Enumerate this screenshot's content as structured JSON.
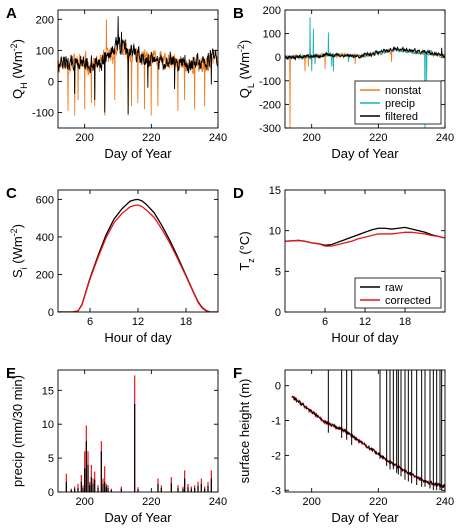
{
  "colors": {
    "orange": "#f07c22",
    "teal": "#1ab3b3",
    "black": "#000000",
    "red": "#e8141b",
    "axis": "#000000"
  },
  "chart_data": [
    {
      "panel": "A",
      "type": "line",
      "panel_label": "A",
      "xlabel": "Day of Year",
      "ylabel_main": "Q",
      "ylabel_sub": "H",
      "ylabel_unit_pre": " (Wm",
      "ylabel_unit_sup": "-2",
      "ylabel_unit_post": ")",
      "xlim": [
        192,
        240
      ],
      "ylim": [
        -150,
        230
      ],
      "xticks": [
        200,
        220,
        240
      ],
      "yticks": [
        -100,
        0,
        100,
        200
      ],
      "legend": "none",
      "series": [
        {
          "color": "orange",
          "gen": {
            "seed": 11,
            "n": 480,
            "base": 62,
            "amp": 28,
            "trend": [
              [
                192,
                60
              ],
              [
                205,
                55
              ],
              [
                210,
                110
              ],
              [
                215,
                85
              ],
              [
                225,
                60
              ],
              [
                235,
                55
              ],
              [
                240,
                75
              ]
            ],
            "spikes": [
              [
                195,
                -95
              ],
              [
                197,
                -110
              ],
              [
                198,
                -60
              ],
              [
                200,
                -90
              ],
              [
                202,
                -70
              ],
              [
                203,
                -80
              ],
              [
                206,
                -110
              ],
              [
                206.5,
                200
              ],
              [
                209,
                -60
              ],
              [
                213,
                -110
              ],
              [
                214,
                -80
              ],
              [
                216,
                -70
              ],
              [
                218,
                -90
              ],
              [
                220,
                -110
              ],
              [
                222,
                -80
              ],
              [
                228,
                -95
              ],
              [
                230,
                -60
              ],
              [
                233,
                -90
              ],
              [
                236,
                -80
              ]
            ]
          }
        },
        {
          "color": "black",
          "gen": {
            "seed": 12,
            "n": 480,
            "base": 62,
            "amp": 24,
            "trend": [
              [
                192,
                60
              ],
              [
                205,
                55
              ],
              [
                210,
                120
              ],
              [
                215,
                85
              ],
              [
                225,
                60
              ],
              [
                235,
                55
              ],
              [
                240,
                80
              ]
            ],
            "spikes": [
              [
                197,
                -40
              ],
              [
                203,
                -60
              ],
              [
                206,
                -100
              ],
              [
                210,
                210
              ],
              [
                211,
                160
              ],
              [
                213,
                -105
              ],
              [
                219,
                -20
              ],
              [
                227,
                -25
              ],
              [
                238,
                -10
              ]
            ]
          }
        }
      ]
    },
    {
      "panel": "B",
      "type": "line",
      "panel_label": "B",
      "xlabel": "Day of Year",
      "ylabel_main": "Q",
      "ylabel_sub": "L",
      "ylabel_unit_pre": " (Wm",
      "ylabel_unit_sup": "-2",
      "ylabel_unit_post": ")",
      "xlim": [
        192,
        240
      ],
      "ylim": [
        -300,
        200
      ],
      "xticks": [
        200,
        220,
        240
      ],
      "yticks": [
        -300,
        -200,
        -100,
        0,
        100,
        200
      ],
      "legend": "lower-right",
      "series": [
        {
          "name": "nonstat",
          "color": "orange",
          "gen": {
            "seed": 21,
            "n": 480,
            "base": 5,
            "amp": 8,
            "trend": [
              [
                192,
                0
              ],
              [
                200,
                5
              ],
              [
                205,
                10
              ],
              [
                215,
                5
              ],
              [
                225,
                30
              ],
              [
                232,
                20
              ],
              [
                240,
                5
              ]
            ],
            "spikes": [
              [
                193.5,
                -300
              ],
              [
                198,
                -60
              ],
              [
                199,
                -40
              ],
              [
                204,
                -50
              ],
              [
                213,
                -30
              ],
              [
                224,
                -20
              ]
            ]
          }
        },
        {
          "name": "precip",
          "color": "teal",
          "gen": {
            "seed": 22,
            "n": 480,
            "base": 5,
            "amp": 5,
            "trend": [
              [
                192,
                0
              ],
              [
                200,
                5
              ],
              [
                205,
                10
              ],
              [
                215,
                5
              ],
              [
                225,
                30
              ],
              [
                232,
                20
              ],
              [
                240,
                5
              ]
            ],
            "spikes": [
              [
                199.5,
                170
              ],
              [
                200,
                -60
              ],
              [
                200.5,
                120
              ],
              [
                201,
                -30
              ],
              [
                205,
                105
              ],
              [
                206,
                -40
              ],
              [
                206.5,
                -60
              ],
              [
                211,
                -20
              ],
              [
                234,
                -300
              ],
              [
                234.5,
                -100
              ],
              [
                236,
                30
              ]
            ]
          }
        },
        {
          "name": "filtered",
          "color": "black",
          "gen": {
            "seed": 23,
            "n": 480,
            "base": 5,
            "amp": 7,
            "trend": [
              [
                192,
                0
              ],
              [
                200,
                5
              ],
              [
                205,
                10
              ],
              [
                215,
                5
              ],
              [
                225,
                35
              ],
              [
                232,
                25
              ],
              [
                240,
                5
              ]
            ],
            "spikes": [
              [
                239,
                40
              ]
            ]
          }
        }
      ]
    },
    {
      "panel": "C",
      "type": "line",
      "panel_label": "C",
      "xlabel": "Hour of day",
      "ylabel_main": "S",
      "ylabel_sub": "i",
      "ylabel_unit_pre": " (Wm",
      "ylabel_unit_sup": "-2",
      "ylabel_unit_post": ")",
      "xlim": [
        2,
        22
      ],
      "ylim": [
        0,
        650
      ],
      "xticks": [
        6,
        12,
        18
      ],
      "yticks": [
        0,
        200,
        400,
        600
      ],
      "legend": "none",
      "series": [
        {
          "color": "black",
          "x": [
            2,
            3.8,
            4.5,
            5,
            6,
            7,
            8,
            9,
            10,
            11,
            11.6,
            12,
            12.5,
            13,
            14,
            15,
            16,
            17,
            18,
            19,
            19.5,
            20,
            20.5,
            21,
            22
          ],
          "y": [
            0,
            0,
            5,
            40,
            180,
            300,
            410,
            495,
            550,
            590,
            598,
            600,
            592,
            575,
            530,
            460,
            380,
            290,
            195,
            100,
            55,
            25,
            8,
            0,
            0
          ]
        },
        {
          "color": "red",
          "x": [
            2,
            3.8,
            4.5,
            5,
            6,
            7,
            8,
            9,
            10,
            11,
            11.6,
            12,
            12.5,
            13,
            14,
            15,
            16,
            17,
            18,
            19,
            19.5,
            20,
            20.5,
            21,
            22
          ],
          "y": [
            0,
            0,
            5,
            38,
            175,
            290,
            395,
            475,
            525,
            560,
            568,
            570,
            562,
            545,
            505,
            440,
            365,
            280,
            190,
            97,
            52,
            22,
            6,
            0,
            0
          ]
        }
      ]
    },
    {
      "panel": "D",
      "type": "line",
      "panel_label": "D",
      "xlabel": "Hour of day",
      "ylabel_main": "T",
      "ylabel_sub": "z",
      "ylabel_unit_pre": " (°C)",
      "ylabel_unit_sup": "",
      "ylabel_unit_post": "",
      "xlim": [
        0,
        24
      ],
      "ylim": [
        0,
        15
      ],
      "xticks": [
        6,
        12,
        18
      ],
      "yticks": [
        0,
        5,
        10,
        15
      ],
      "legend": "lower-right",
      "series": [
        {
          "name": "raw",
          "color": "black",
          "x": [
            0,
            2,
            3,
            4,
            5,
            6,
            7,
            8,
            9,
            10,
            11,
            12,
            13,
            14,
            15,
            16,
            17,
            18,
            19,
            20,
            21,
            22,
            23,
            24
          ],
          "y": [
            8.7,
            8.8,
            8.7,
            8.5,
            8.4,
            8.2,
            8.3,
            8.6,
            8.9,
            9.2,
            9.5,
            9.8,
            10.1,
            10.3,
            10.3,
            10.2,
            10.3,
            10.4,
            10.2,
            10.0,
            9.8,
            9.5,
            9.3,
            9.1
          ]
        },
        {
          "name": "corrected",
          "color": "red",
          "x": [
            0,
            2,
            3,
            4,
            5,
            6,
            7,
            8,
            9,
            10,
            11,
            12,
            13,
            14,
            15,
            16,
            17,
            18,
            19,
            20,
            21,
            22,
            23,
            24
          ],
          "y": [
            8.7,
            8.8,
            8.7,
            8.5,
            8.4,
            8.1,
            8.1,
            8.3,
            8.5,
            8.7,
            9.0,
            9.2,
            9.4,
            9.6,
            9.6,
            9.6,
            9.7,
            9.8,
            9.8,
            9.7,
            9.6,
            9.4,
            9.3,
            9.1
          ]
        }
      ]
    },
    {
      "panel": "E",
      "type": "bar",
      "panel_label": "E",
      "xlabel": "Day of Year",
      "ylabel_main": "precip (mm/30 min)",
      "ylabel_sub": "",
      "ylabel_unit_pre": "",
      "ylabel_unit_sup": "",
      "ylabel_unit_post": "",
      "xlim": [
        192,
        240
      ],
      "ylim": [
        0,
        18
      ],
      "xticks": [
        200,
        220,
        240
      ],
      "yticks": [
        0,
        5,
        10,
        15
      ],
      "legend": "none",
      "bars": {
        "x": [
          194.5,
          196,
          197,
          198,
          199,
          199.5,
          200,
          200.5,
          201,
          201.5,
          202,
          202.5,
          203,
          204,
          205,
          205.5,
          206,
          206.5,
          207,
          208,
          211,
          215,
          216,
          222,
          223,
          226,
          228,
          229.5,
          230,
          231,
          232,
          233,
          234,
          235,
          236,
          237,
          238
        ],
        "red": [
          2.7,
          0.5,
          0.8,
          1.2,
          2.5,
          1.0,
          6.0,
          9.8,
          6.0,
          1.5,
          4.0,
          2.0,
          3.0,
          1.0,
          7.5,
          2.0,
          3.8,
          1.2,
          1.0,
          0.5,
          0.8,
          17.2,
          0.7,
          2.0,
          1.0,
          2.2,
          1.0,
          0.8,
          3.2,
          1.2,
          0.8,
          1.0,
          1.5,
          2.0,
          0.8,
          1.5,
          3.2
        ],
        "black": [
          1.5,
          0.3,
          0.5,
          0.6,
          1.5,
          0.6,
          3.5,
          7.5,
          4.0,
          1.0,
          2.2,
          1.2,
          1.8,
          0.6,
          6.0,
          1.2,
          1.5,
          0.8,
          0.6,
          0.3,
          0.5,
          13.0,
          0.4,
          1.2,
          0.6,
          1.3,
          0.6,
          0.5,
          2.0,
          0.7,
          0.5,
          0.6,
          0.9,
          1.2,
          0.5,
          0.9,
          2.0
        ]
      }
    },
    {
      "panel": "F",
      "type": "line",
      "panel_label": "F",
      "xlabel": "Day of Year",
      "ylabel_main": "surface height (m)",
      "ylabel_sub": "",
      "ylabel_unit_pre": "",
      "ylabel_unit_sup": "",
      "ylabel_unit_post": "",
      "xlim": [
        192,
        240
      ],
      "ylim": [
        -3.05,
        0.45
      ],
      "xticks": [
        200,
        220,
        240
      ],
      "yticks": [
        -3,
        -2,
        -1,
        0
      ],
      "legend": "none",
      "surface": {
        "trend": [
          [
            192,
            -0.15
          ],
          [
            196,
            -0.45
          ],
          [
            200,
            -0.75
          ],
          [
            204,
            -1.05
          ],
          [
            210,
            -1.3
          ],
          [
            216,
            -1.7
          ],
          [
            222,
            -2.1
          ],
          [
            228,
            -2.45
          ],
          [
            234,
            -2.75
          ],
          [
            240,
            -2.9
          ]
        ]
      },
      "spikes": [
        [
          205,
          -1.35
        ],
        [
          209,
          -1.5
        ],
        [
          210.5,
          -1.55
        ],
        [
          212,
          -1.7
        ],
        [
          220.5,
          -2.1
        ],
        [
          222.5,
          -2.3
        ],
        [
          223.5,
          -2.4
        ],
        [
          224.5,
          -2.4
        ],
        [
          225.5,
          -2.5
        ],
        [
          226,
          -2.55
        ],
        [
          226.8,
          -2.6
        ],
        [
          228,
          -2.7
        ],
        [
          229,
          -2.75
        ],
        [
          230,
          -2.8
        ],
        [
          231.5,
          -2.85
        ],
        [
          233,
          -2.9
        ],
        [
          234,
          -2.9
        ],
        [
          235.5,
          -2.95
        ],
        [
          236.5,
          -3.0
        ],
        [
          237.5,
          -3.0
        ],
        [
          238.5,
          -3.0
        ],
        [
          239,
          -3.0
        ]
      ],
      "series": [
        {
          "color": "red"
        },
        {
          "color": "black"
        }
      ]
    }
  ]
}
